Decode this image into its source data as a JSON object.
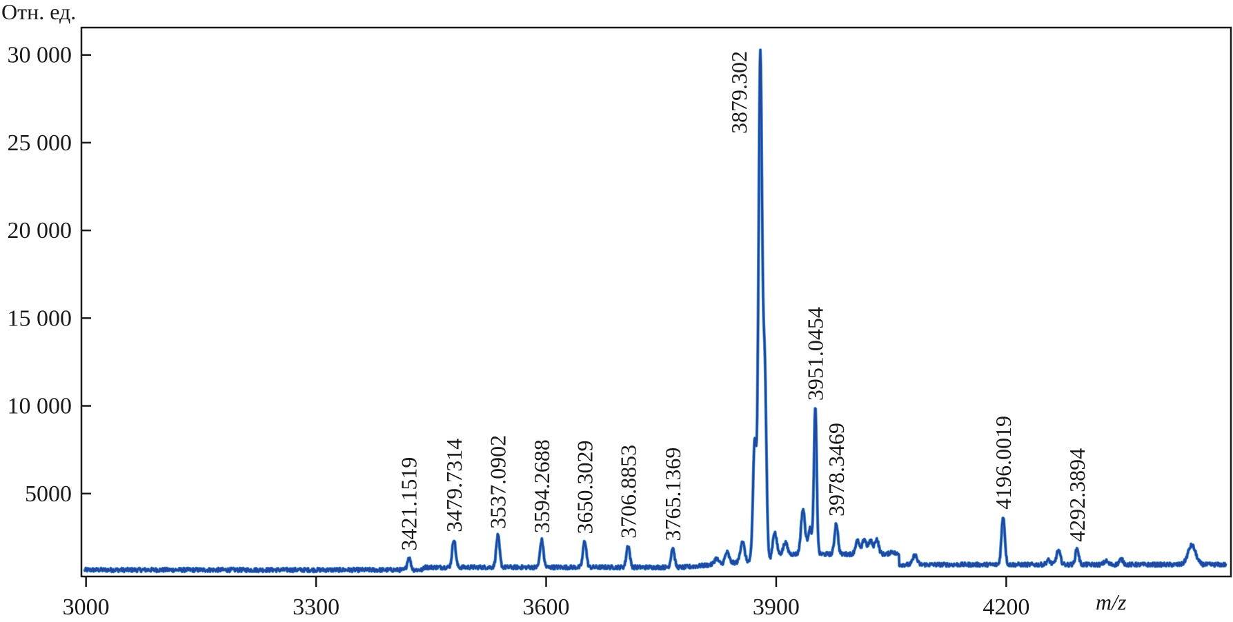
{
  "chart_data": {
    "type": "line",
    "title": "",
    "ylabel": "Отн. ед.",
    "xlabel": "m/z",
    "xlim": [
      2994,
      4493
    ],
    "ylim": [
      275,
      31560
    ],
    "x_ticks": [
      3000,
      3300,
      3600,
      3900,
      4200
    ],
    "x_tick_labels": [
      "3000",
      "3300",
      "3600",
      "3900",
      "4200"
    ],
    "y_ticks": [
      5000,
      10000,
      15000,
      20000,
      25000,
      30000
    ],
    "y_tick_labels": [
      "5000",
      "10 000",
      "15 000",
      "20 000",
      "25 000",
      "30 000"
    ],
    "grid": false,
    "line_color": "#2447a0",
    "baseline_intensity": 650,
    "labelled_peaks": [
      {
        "mz": 3421.1519,
        "intensity": 1350,
        "label": "3421.1519"
      },
      {
        "mz": 3479.7314,
        "intensity": 2400,
        "label": "3479.7314"
      },
      {
        "mz": 3537.0902,
        "intensity": 2600,
        "label": "3537.0902"
      },
      {
        "mz": 3594.2688,
        "intensity": 2350,
        "label": "3594.2688"
      },
      {
        "mz": 3650.3029,
        "intensity": 2300,
        "label": "3650.3029"
      },
      {
        "mz": 3706.8853,
        "intensity": 2050,
        "label": "3706.8853"
      },
      {
        "mz": 3765.1369,
        "intensity": 1900,
        "label": "3765.1369"
      },
      {
        "mz": 3879.302,
        "intensity": 29900,
        "label": "3879.302"
      },
      {
        "mz": 3951.0454,
        "intensity": 9900,
        "label": "3951.0454"
      },
      {
        "mz": 3978.3469,
        "intensity": 3300,
        "label": "3978.3469"
      },
      {
        "mz": 4196.0019,
        "intensity": 3700,
        "label": "4196.0019"
      },
      {
        "mz": 4292.3894,
        "intensity": 1850,
        "label": "4292.3894"
      }
    ],
    "other_peaks": [
      {
        "mz": 3822,
        "intensity": 1300
      },
      {
        "mz": 3836,
        "intensity": 1650
      },
      {
        "mz": 3856,
        "intensity": 2300
      },
      {
        "mz": 3872,
        "intensity": 8000
      },
      {
        "mz": 3885,
        "intensity": 12000
      },
      {
        "mz": 3898,
        "intensity": 2800
      },
      {
        "mz": 3912,
        "intensity": 2200
      },
      {
        "mz": 3935,
        "intensity": 4100
      },
      {
        "mz": 3944,
        "intensity": 3000
      },
      {
        "mz": 4006,
        "intensity": 2300
      },
      {
        "mz": 4015,
        "intensity": 2400
      },
      {
        "mz": 4023,
        "intensity": 2300
      },
      {
        "mz": 4031,
        "intensity": 2400
      },
      {
        "mz": 4051,
        "intensity": 1700
      },
      {
        "mz": 4081,
        "intensity": 1500
      },
      {
        "mz": 4255,
        "intensity": 1200
      },
      {
        "mz": 4268,
        "intensity": 1750
      },
      {
        "mz": 4330,
        "intensity": 1150
      },
      {
        "mz": 4350,
        "intensity": 1250
      },
      {
        "mz": 4442,
        "intensity": 2050
      }
    ]
  }
}
